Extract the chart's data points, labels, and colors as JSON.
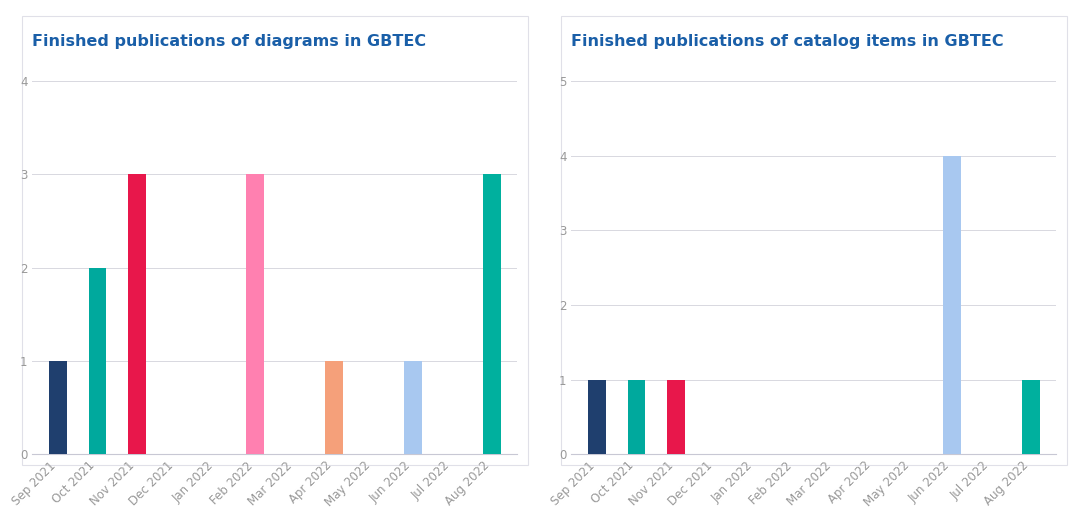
{
  "chart1": {
    "title": "Finished publications of diagrams in GBTEC",
    "categories": [
      "Sep 2021",
      "Oct 2021",
      "Nov 2021",
      "Dec 2021",
      "Jan 2022",
      "Feb 2022",
      "Mar 2022",
      "Apr 2022",
      "May 2022",
      "Jun 2022",
      "Jul 2022",
      "Aug 2022"
    ],
    "values": [
      1,
      2,
      3,
      0,
      0,
      3,
      0,
      1,
      0,
      1,
      0,
      3
    ],
    "colors": [
      "#1f3f6e",
      "#00a99d",
      "#e8174b",
      "#ffffff",
      "#ffffff",
      "#ff80b0",
      "#ffffff",
      "#f5a07a",
      "#ffffff",
      "#a8c8f0",
      "#ffffff",
      "#00b09e"
    ],
    "ylim": [
      0,
      4.2
    ],
    "yticks": [
      0,
      1,
      2,
      3,
      4
    ]
  },
  "chart2": {
    "title": "Finished publications of catalog items in GBTEC",
    "categories": [
      "Sep 2021",
      "Oct 2021",
      "Nov 2021",
      "Dec 2021",
      "Jan 2022",
      "Feb 2022",
      "Mar 2022",
      "Apr 2022",
      "May 2022",
      "Jun 2022",
      "Jul 2022",
      "Aug 2022"
    ],
    "values": [
      1,
      1,
      1,
      0,
      0,
      0,
      0,
      0,
      0,
      4,
      0,
      1
    ],
    "colors": [
      "#1f3f6e",
      "#00a99d",
      "#e8174b",
      "#ffffff",
      "#ffffff",
      "#ffffff",
      "#ffffff",
      "#ffffff",
      "#ffffff",
      "#a8c8f0",
      "#ffffff",
      "#00b09e"
    ],
    "ylim": [
      0,
      5.25
    ],
    "yticks": [
      0,
      1,
      2,
      3,
      4,
      5
    ]
  },
  "bg_color": "#ffffff",
  "plot_bg": "#ffffff",
  "grid_color": "#d8d8e0",
  "title_color": "#1a5fa8",
  "tick_color": "#999999",
  "title_fontsize": 11.5,
  "tick_fontsize": 8.5,
  "bar_width": 0.45,
  "card_edge_color": "#e0e0e8",
  "bottom_line_color": "#c8c8d4"
}
